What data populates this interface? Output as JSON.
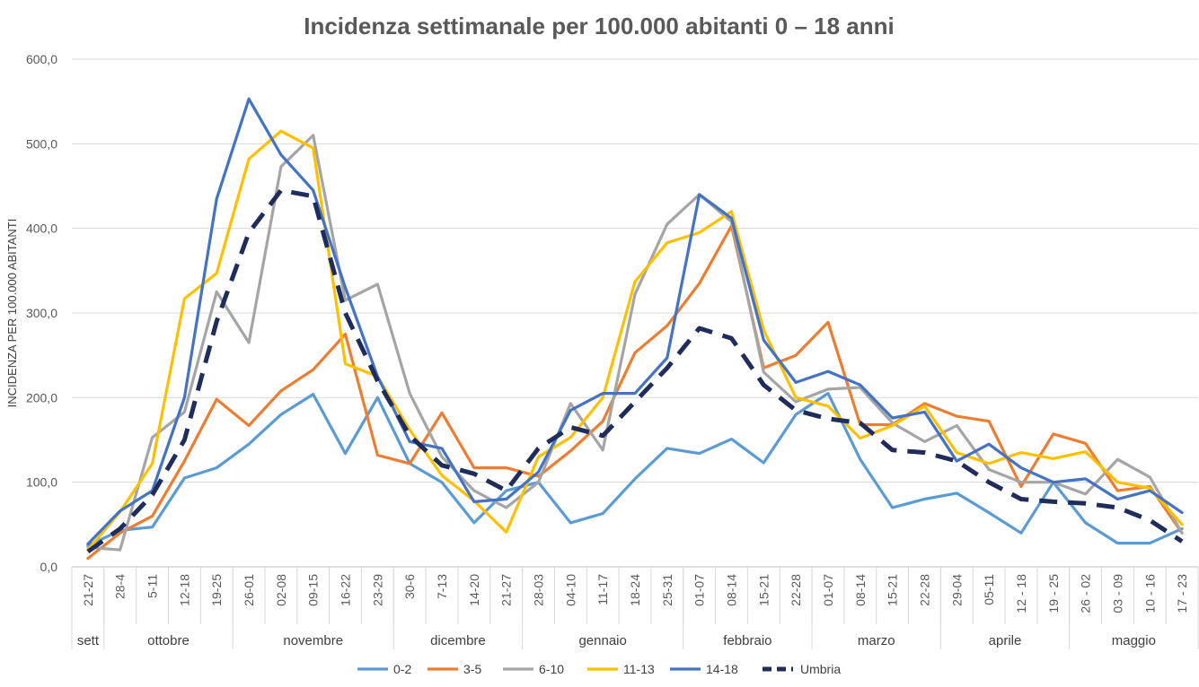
{
  "chart_data": {
    "type": "line",
    "title": "Incidenza settimanale per 100.000 abitanti 0 – 18 anni",
    "xlabel": "",
    "ylabel": "INCIDENZA PER 100.000 ABITANTI",
    "ylim": [
      0,
      600
    ],
    "yticks": [
      "0,0",
      "100,0",
      "200,0",
      "300,0",
      "400,0",
      "500,0",
      "600,0"
    ],
    "grid": true,
    "legend_position": "bottom",
    "categories": [
      "21-27",
      "28-4",
      "5-11",
      "12-18",
      "19-25",
      "26-01",
      "02-08",
      "09-15",
      "16-22",
      "23-29",
      "30-6",
      "7-13",
      "14-20",
      "21-27",
      "28-03",
      "04-10",
      "11-17",
      "18-24",
      "25-31",
      "01-07",
      "08-14",
      "15-21",
      "22-28",
      "01-07",
      "08-14",
      "15-21",
      "22-28",
      "29-04",
      "05-11",
      "12 - 18",
      "19 - 25",
      "26 - 02",
      "03 - 09",
      "10 - 16",
      "17 - 23"
    ],
    "months": [
      {
        "label": "sett",
        "count": 1
      },
      {
        "label": "ottobre",
        "count": 4
      },
      {
        "label": "novembre",
        "count": 5
      },
      {
        "label": "dicembre",
        "count": 4
      },
      {
        "label": "gennaio",
        "count": 5
      },
      {
        "label": "febbraio",
        "count": 4
      },
      {
        "label": "marzo",
        "count": 4
      },
      {
        "label": "aprile",
        "count": 4
      },
      {
        "label": "maggio",
        "count": 4
      }
    ],
    "series": [
      {
        "name": "0-2",
        "color": "#5B9BD5",
        "dash": false,
        "values": [
          25,
          43,
          47,
          105,
          117,
          145,
          180,
          204,
          134,
          200,
          122,
          100,
          52,
          90,
          100,
          52,
          63,
          104,
          140,
          134,
          151,
          123,
          180,
          205,
          127,
          70,
          80,
          87,
          64,
          40,
          100,
          52,
          28,
          28,
          45
        ]
      },
      {
        "name": "3-5",
        "color": "#ED7D31",
        "dash": false,
        "values": [
          10,
          40,
          60,
          125,
          198,
          167,
          208,
          233,
          275,
          132,
          122,
          182,
          117,
          117,
          107,
          137,
          172,
          253,
          285,
          335,
          403,
          235,
          250,
          289,
          168,
          168,
          193,
          178,
          172,
          95,
          157,
          146,
          90,
          95,
          40
        ]
      },
      {
        "name": "6-10",
        "color": "#A5A5A5",
        "dash": false,
        "values": [
          23,
          20,
          153,
          183,
          325,
          265,
          473,
          510,
          315,
          334,
          205,
          130,
          90,
          70,
          100,
          193,
          138,
          322,
          405,
          440,
          408,
          230,
          195,
          210,
          212,
          170,
          148,
          167,
          115,
          100,
          100,
          86,
          127,
          106,
          40
        ]
      },
      {
        "name": "11-13",
        "color": "#FFC000",
        "dash": false,
        "values": [
          20,
          65,
          122,
          317,
          347,
          482,
          515,
          495,
          240,
          225,
          162,
          108,
          78,
          41,
          130,
          153,
          200,
          337,
          383,
          395,
          420,
          280,
          200,
          190,
          152,
          167,
          190,
          135,
          122,
          135,
          128,
          136,
          100,
          93,
          50
        ]
      },
      {
        "name": "14-18",
        "color": "#4472C4",
        "dash": false,
        "values": [
          27,
          66,
          90,
          200,
          435,
          553,
          487,
          445,
          330,
          225,
          148,
          140,
          77,
          80,
          112,
          185,
          205,
          205,
          247,
          440,
          412,
          268,
          218,
          231,
          215,
          176,
          183,
          125,
          145,
          117,
          100,
          104,
          80,
          90,
          64
        ]
      },
      {
        "name": "Umbria",
        "color": "#1F2D5C",
        "dash": true,
        "values": [
          18,
          45,
          85,
          150,
          290,
          395,
          445,
          438,
          300,
          220,
          155,
          120,
          110,
          90,
          140,
          165,
          155,
          195,
          235,
          282,
          270,
          215,
          185,
          175,
          170,
          138,
          135,
          125,
          100,
          80,
          77,
          75,
          70,
          55,
          30
        ]
      }
    ]
  }
}
